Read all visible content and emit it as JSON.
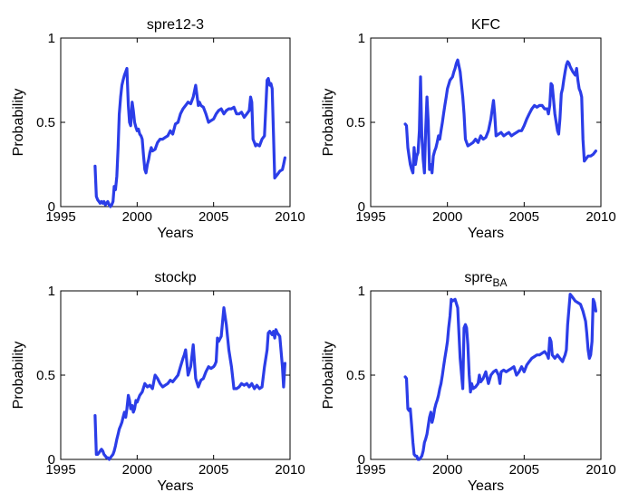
{
  "chart_data": [
    {
      "type": "line",
      "title": "spre12-3",
      "title_sub": "",
      "xlabel": "Years",
      "ylabel": "Probability",
      "xlim": [
        1995,
        2010
      ],
      "ylim": [
        0,
        1
      ],
      "xticks": [
        1995,
        2000,
        2005,
        2010
      ],
      "yticks": [
        0,
        0.5,
        1
      ],
      "xtick_labels": [
        "1995",
        "2000",
        "2005",
        "2010"
      ],
      "ytick_labels": [
        "0",
        "0.5",
        "1"
      ],
      "color": "#2b3de8",
      "series": [
        {
          "x": [
            1997.25,
            1997.33,
            1997.42,
            1997.5,
            1997.58,
            1997.67,
            1997.75,
            1997.83,
            1997.92,
            1998.0,
            1998.08,
            1998.17,
            1998.25,
            1998.33,
            1998.42,
            1998.5,
            1998.58,
            1998.67,
            1998.75,
            1998.83,
            1998.92,
            1999.0,
            1999.08,
            1999.17,
            1999.25,
            1999.33,
            1999.42,
            1999.5,
            1999.58,
            1999.67,
            1999.75,
            1999.83,
            1999.92,
            2000.0,
            2000.08,
            2000.17,
            2000.25,
            2000.33,
            2000.42,
            2000.5,
            2000.58,
            2000.67,
            2000.75,
            2000.83,
            2000.92,
            2001.0,
            2001.17,
            2001.33,
            2001.5,
            2001.67,
            2001.83,
            2002.0,
            2002.17,
            2002.33,
            2002.5,
            2002.67,
            2002.83,
            2003.0,
            2003.17,
            2003.33,
            2003.5,
            2003.67,
            2003.83,
            2004.0,
            2004.08,
            2004.17,
            2004.33,
            2004.5,
            2004.67,
            2004.83,
            2005.0,
            2005.17,
            2005.33,
            2005.5,
            2005.67,
            2005.83,
            2006.0,
            2006.17,
            2006.33,
            2006.5,
            2006.67,
            2006.83,
            2007.0,
            2007.17,
            2007.33,
            2007.42,
            2007.5,
            2007.58,
            2007.67,
            2007.75,
            2007.83,
            2008.0,
            2008.17,
            2008.33,
            2008.42,
            2008.5,
            2008.58,
            2008.67,
            2008.75,
            2008.83,
            2008.92,
            2009.0,
            2009.08,
            2009.17,
            2009.33,
            2009.5,
            2009.58,
            2009.67
          ],
          "y": [
            0.24,
            0.06,
            0.04,
            0.03,
            0.02,
            0.03,
            0.02,
            0.03,
            0.01,
            0.02,
            0.03,
            0.01,
            0.0,
            0.01,
            0.03,
            0.12,
            0.1,
            0.18,
            0.35,
            0.55,
            0.65,
            0.72,
            0.75,
            0.78,
            0.8,
            0.82,
            0.6,
            0.5,
            0.48,
            0.62,
            0.57,
            0.5,
            0.47,
            0.45,
            0.46,
            0.43,
            0.42,
            0.4,
            0.3,
            0.22,
            0.2,
            0.25,
            0.28,
            0.32,
            0.35,
            0.33,
            0.34,
            0.38,
            0.4,
            0.4,
            0.41,
            0.42,
            0.45,
            0.43,
            0.49,
            0.5,
            0.55,
            0.58,
            0.6,
            0.62,
            0.61,
            0.65,
            0.72,
            0.6,
            0.62,
            0.6,
            0.59,
            0.55,
            0.5,
            0.51,
            0.52,
            0.55,
            0.57,
            0.58,
            0.55,
            0.57,
            0.58,
            0.58,
            0.59,
            0.55,
            0.55,
            0.56,
            0.53,
            0.55,
            0.57,
            0.65,
            0.62,
            0.4,
            0.38,
            0.36,
            0.37,
            0.36,
            0.4,
            0.42,
            0.6,
            0.75,
            0.76,
            0.72,
            0.73,
            0.7,
            0.42,
            0.17,
            0.18,
            0.19,
            0.21,
            0.22,
            0.25,
            0.29
          ]
        }
      ]
    },
    {
      "type": "line",
      "title": "KFC",
      "title_sub": "",
      "xlabel": "Years",
      "ylabel": "Probability",
      "xlim": [
        1995,
        2010
      ],
      "ylim": [
        0,
        1
      ],
      "xticks": [
        1995,
        2000,
        2005,
        2010
      ],
      "yticks": [
        0,
        0.5,
        1
      ],
      "xtick_labels": [
        "1995",
        "2000",
        "2005",
        "2010"
      ],
      "ytick_labels": [
        "0",
        "0.5",
        "1"
      ],
      "color": "#2b3de8",
      "series": [
        {
          "x": [
            1997.25,
            1997.33,
            1997.42,
            1997.5,
            1997.58,
            1997.67,
            1997.75,
            1997.83,
            1997.92,
            1998.0,
            1998.08,
            1998.17,
            1998.25,
            1998.33,
            1998.42,
            1998.5,
            1998.58,
            1998.67,
            1998.75,
            1998.83,
            1998.92,
            1999.0,
            1999.08,
            1999.17,
            1999.25,
            1999.33,
            1999.42,
            1999.5,
            1999.58,
            1999.67,
            1999.75,
            1999.83,
            1999.92,
            2000.0,
            2000.17,
            2000.33,
            2000.42,
            2000.5,
            2000.58,
            2000.67,
            2000.83,
            2001.0,
            2001.08,
            2001.17,
            2001.33,
            2001.5,
            2001.67,
            2001.83,
            2002.0,
            2002.17,
            2002.33,
            2002.5,
            2002.67,
            2002.83,
            2003.0,
            2003.08,
            2003.17,
            2003.33,
            2003.5,
            2003.67,
            2003.83,
            2004.0,
            2004.17,
            2004.33,
            2004.5,
            2004.67,
            2004.83,
            2005.0,
            2005.17,
            2005.33,
            2005.5,
            2005.67,
            2005.83,
            2006.0,
            2006.17,
            2006.33,
            2006.5,
            2006.58,
            2006.67,
            2006.75,
            2006.83,
            2007.0,
            2007.17,
            2007.25,
            2007.33,
            2007.42,
            2007.5,
            2007.58,
            2007.67,
            2007.75,
            2007.83,
            2007.92,
            2008.0,
            2008.17,
            2008.33,
            2008.42,
            2008.5,
            2008.58,
            2008.67,
            2008.75,
            2008.83,
            2008.92,
            2009.0,
            2009.08,
            2009.17,
            2009.33,
            2009.5,
            2009.58,
            2009.67
          ],
          "y": [
            0.49,
            0.48,
            0.35,
            0.3,
            0.25,
            0.22,
            0.2,
            0.35,
            0.25,
            0.3,
            0.32,
            0.45,
            0.77,
            0.42,
            0.28,
            0.2,
            0.45,
            0.65,
            0.5,
            0.22,
            0.25,
            0.2,
            0.3,
            0.33,
            0.35,
            0.38,
            0.42,
            0.4,
            0.45,
            0.5,
            0.55,
            0.6,
            0.65,
            0.7,
            0.75,
            0.77,
            0.8,
            0.82,
            0.85,
            0.87,
            0.8,
            0.65,
            0.55,
            0.4,
            0.36,
            0.37,
            0.38,
            0.4,
            0.38,
            0.42,
            0.4,
            0.41,
            0.45,
            0.52,
            0.63,
            0.55,
            0.42,
            0.43,
            0.44,
            0.42,
            0.43,
            0.44,
            0.42,
            0.43,
            0.44,
            0.45,
            0.45,
            0.48,
            0.52,
            0.55,
            0.58,
            0.6,
            0.59,
            0.6,
            0.6,
            0.58,
            0.58,
            0.55,
            0.6,
            0.73,
            0.72,
            0.55,
            0.45,
            0.43,
            0.52,
            0.67,
            0.7,
            0.75,
            0.8,
            0.84,
            0.86,
            0.85,
            0.83,
            0.8,
            0.78,
            0.82,
            0.75,
            0.7,
            0.68,
            0.65,
            0.4,
            0.27,
            0.28,
            0.29,
            0.3,
            0.3,
            0.31,
            0.32,
            0.33
          ]
        }
      ]
    },
    {
      "type": "line",
      "title": "stockp",
      "title_sub": "",
      "xlabel": "Years",
      "ylabel": "Probability",
      "xlim": [
        1995,
        2010
      ],
      "ylim": [
        0,
        1
      ],
      "xticks": [
        1995,
        2000,
        2005,
        2010
      ],
      "yticks": [
        0,
        0.5,
        1
      ],
      "xtick_labels": [
        "1995",
        "2000",
        "2005",
        "2010"
      ],
      "ytick_labels": [
        "0",
        "0.5",
        "1"
      ],
      "color": "#2b3de8",
      "series": [
        {
          "x": [
            1997.25,
            1997.33,
            1997.42,
            1997.5,
            1997.58,
            1997.67,
            1997.75,
            1997.83,
            1997.92,
            1998.0,
            1998.08,
            1998.17,
            1998.25,
            1998.33,
            1998.42,
            1998.5,
            1998.58,
            1998.67,
            1998.75,
            1998.83,
            1998.92,
            1999.0,
            1999.08,
            1999.17,
            1999.25,
            1999.33,
            1999.42,
            1999.5,
            1999.58,
            1999.67,
            1999.75,
            1999.83,
            1999.92,
            2000.0,
            2000.17,
            2000.33,
            2000.5,
            2000.67,
            2000.83,
            2001.0,
            2001.17,
            2001.33,
            2001.5,
            2001.67,
            2001.83,
            2002.0,
            2002.17,
            2002.33,
            2002.5,
            2002.67,
            2002.83,
            2003.0,
            2003.08,
            2003.17,
            2003.33,
            2003.5,
            2003.67,
            2003.83,
            2004.0,
            2004.17,
            2004.33,
            2004.5,
            2004.67,
            2004.83,
            2005.0,
            2005.08,
            2005.17,
            2005.25,
            2005.33,
            2005.5,
            2005.67,
            2005.83,
            2006.0,
            2006.17,
            2006.33,
            2006.5,
            2006.67,
            2006.83,
            2007.0,
            2007.17,
            2007.33,
            2007.5,
            2007.67,
            2007.83,
            2008.0,
            2008.17,
            2008.33,
            2008.5,
            2008.58,
            2008.67,
            2008.75,
            2008.83,
            2008.92,
            2009.0,
            2009.08,
            2009.17,
            2009.33,
            2009.5,
            2009.58,
            2009.67
          ],
          "y": [
            0.26,
            0.03,
            0.03,
            0.04,
            0.05,
            0.06,
            0.05,
            0.03,
            0.02,
            0.01,
            0.01,
            0.0,
            0.01,
            0.02,
            0.03,
            0.05,
            0.08,
            0.12,
            0.15,
            0.18,
            0.2,
            0.22,
            0.25,
            0.28,
            0.25,
            0.3,
            0.38,
            0.35,
            0.3,
            0.32,
            0.28,
            0.3,
            0.35,
            0.34,
            0.38,
            0.4,
            0.45,
            0.43,
            0.44,
            0.42,
            0.5,
            0.48,
            0.45,
            0.43,
            0.44,
            0.45,
            0.47,
            0.46,
            0.48,
            0.5,
            0.55,
            0.6,
            0.62,
            0.65,
            0.5,
            0.55,
            0.68,
            0.48,
            0.43,
            0.47,
            0.48,
            0.52,
            0.55,
            0.54,
            0.55,
            0.56,
            0.58,
            0.72,
            0.7,
            0.73,
            0.9,
            0.8,
            0.65,
            0.55,
            0.42,
            0.42,
            0.43,
            0.45,
            0.44,
            0.45,
            0.43,
            0.45,
            0.42,
            0.44,
            0.42,
            0.43,
            0.55,
            0.65,
            0.75,
            0.76,
            0.75,
            0.74,
            0.76,
            0.72,
            0.77,
            0.75,
            0.73,
            0.55,
            0.43,
            0.57
          ]
        }
      ]
    },
    {
      "type": "line",
      "title": "spre",
      "title_sub": "BA",
      "xlabel": "Years",
      "ylabel": "Probability",
      "xlim": [
        1995,
        2010
      ],
      "ylim": [
        0,
        1
      ],
      "xticks": [
        1995,
        2000,
        2005,
        2010
      ],
      "yticks": [
        0,
        0.5,
        1
      ],
      "xtick_labels": [
        "1995",
        "2000",
        "2005",
        "2010"
      ],
      "ytick_labels": [
        "0",
        "0.5",
        "1"
      ],
      "color": "#2b3de8",
      "series": [
        {
          "x": [
            1997.25,
            1997.33,
            1997.42,
            1997.5,
            1997.58,
            1997.67,
            1997.75,
            1997.83,
            1997.92,
            1998.0,
            1998.08,
            1998.17,
            1998.25,
            1998.33,
            1998.42,
            1998.5,
            1998.58,
            1998.67,
            1998.75,
            1998.83,
            1998.92,
            1999.0,
            1999.08,
            1999.17,
            1999.25,
            1999.33,
            1999.42,
            1999.5,
            1999.58,
            1999.67,
            1999.75,
            1999.83,
            1999.92,
            2000.0,
            2000.08,
            2000.17,
            2000.25,
            2000.33,
            2000.5,
            2000.67,
            2000.83,
            2001.0,
            2001.08,
            2001.17,
            2001.25,
            2001.33,
            2001.42,
            2001.5,
            2001.58,
            2001.67,
            2001.83,
            2002.0,
            2002.08,
            2002.17,
            2002.33,
            2002.5,
            2002.67,
            2002.83,
            2003.0,
            2003.17,
            2003.33,
            2003.42,
            2003.5,
            2003.67,
            2003.83,
            2004.0,
            2004.17,
            2004.33,
            2004.5,
            2004.67,
            2004.83,
            2005.0,
            2005.17,
            2005.33,
            2005.5,
            2005.67,
            2005.83,
            2006.0,
            2006.17,
            2006.33,
            2006.5,
            2006.58,
            2006.67,
            2006.75,
            2006.83,
            2007.0,
            2007.17,
            2007.33,
            2007.5,
            2007.58,
            2007.67,
            2007.75,
            2007.83,
            2008.0,
            2008.17,
            2008.33,
            2008.5,
            2008.67,
            2008.83,
            2009.0,
            2009.08,
            2009.17,
            2009.25,
            2009.33,
            2009.42,
            2009.5,
            2009.58,
            2009.67
          ],
          "y": [
            0.49,
            0.48,
            0.3,
            0.29,
            0.3,
            0.2,
            0.1,
            0.03,
            0.02,
            0.02,
            0.0,
            0.0,
            0.01,
            0.02,
            0.05,
            0.1,
            0.12,
            0.15,
            0.2,
            0.25,
            0.28,
            0.22,
            0.25,
            0.3,
            0.33,
            0.35,
            0.38,
            0.42,
            0.45,
            0.5,
            0.55,
            0.6,
            0.65,
            0.7,
            0.78,
            0.85,
            0.95,
            0.94,
            0.95,
            0.9,
            0.6,
            0.42,
            0.78,
            0.8,
            0.78,
            0.68,
            0.5,
            0.4,
            0.45,
            0.42,
            0.43,
            0.45,
            0.5,
            0.46,
            0.48,
            0.52,
            0.45,
            0.5,
            0.52,
            0.53,
            0.5,
            0.45,
            0.52,
            0.53,
            0.52,
            0.53,
            0.54,
            0.55,
            0.5,
            0.52,
            0.55,
            0.52,
            0.56,
            0.58,
            0.6,
            0.61,
            0.62,
            0.62,
            0.63,
            0.64,
            0.62,
            0.6,
            0.72,
            0.7,
            0.62,
            0.6,
            0.62,
            0.6,
            0.58,
            0.6,
            0.62,
            0.65,
            0.8,
            0.98,
            0.96,
            0.94,
            0.93,
            0.92,
            0.88,
            0.82,
            0.75,
            0.65,
            0.6,
            0.62,
            0.7,
            0.95,
            0.93,
            0.88
          ]
        }
      ]
    }
  ]
}
